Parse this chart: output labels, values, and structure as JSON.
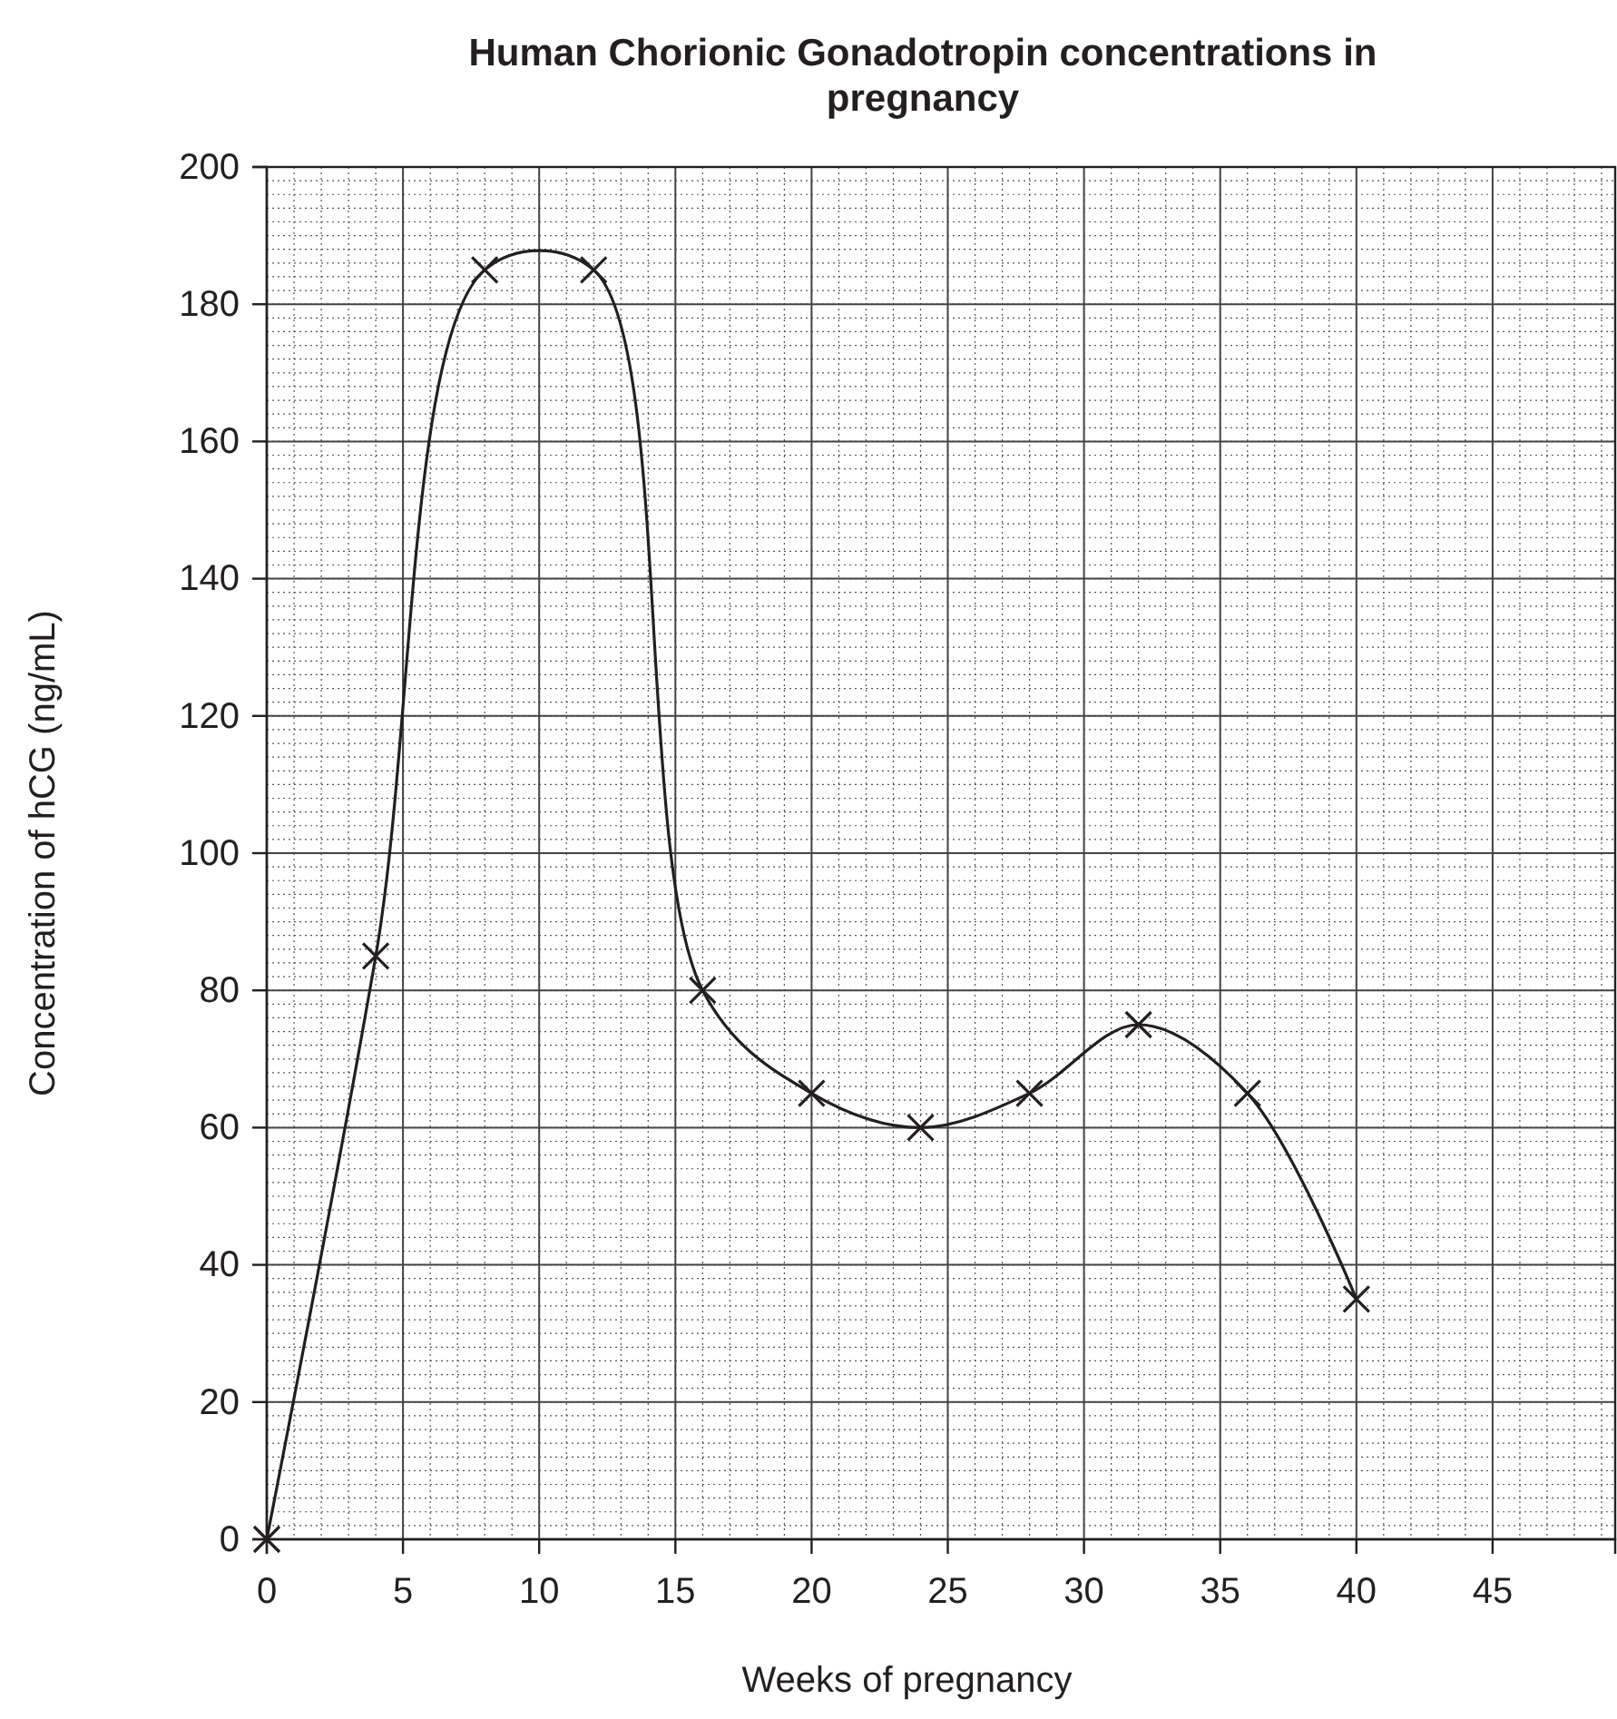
{
  "chart_data": {
    "type": "line",
    "title": "Human Chorionic Gonadotropin concentrations in pregnancy",
    "xlabel": "Weeks of pregnancy",
    "ylabel": "Concentration of hCG (ng/mL)",
    "x": [
      0,
      4,
      8,
      12,
      16,
      20,
      24,
      28,
      32,
      36,
      40
    ],
    "series": [
      {
        "color": "#231f20",
        "values": [
          0,
          85,
          185,
          185,
          80,
          65,
          60,
          65,
          75,
          65,
          35
        ]
      }
    ],
    "xlim": [
      0,
      49.5
    ],
    "xticks": [
      0,
      5,
      10,
      15,
      20,
      25,
      30,
      35,
      40,
      45
    ],
    "ylim": [
      0,
      200
    ],
    "yticks": [
      0,
      20,
      40,
      60,
      80,
      100,
      120,
      140,
      160,
      180,
      200
    ],
    "grid": true,
    "marker": "cross",
    "line_style": "solid"
  }
}
